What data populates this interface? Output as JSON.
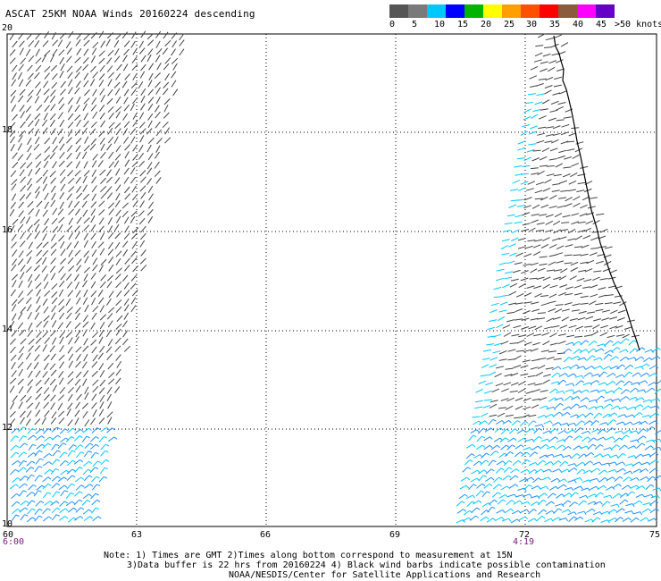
{
  "title": "ASCAT 25KM NOAA Winds 20160224 descending",
  "legend": {
    "labels": [
      "0",
      "5",
      "10",
      "15",
      "20",
      "25",
      "30",
      "35",
      "40",
      "45",
      ">50 knots"
    ],
    "colors": [
      "#555555",
      "#7a7a7a",
      "#00c8ff",
      "#0000ff",
      "#00b400",
      "#ffff00",
      "#ffa000",
      "#ff5000",
      "#ff0000",
      "#8c5a3c",
      "#ff00ff",
      "#6400c8"
    ]
  },
  "map": {
    "lat_labels": [
      "20",
      "18",
      "16",
      "14",
      "12",
      "10"
    ],
    "lon_labels": [
      "60",
      "63",
      "66",
      "69",
      "72",
      "75"
    ],
    "time_labels": [
      "6:00",
      "4:19"
    ]
  },
  "notes": {
    "line1": "Note: 1) Times are GMT 2)Times along bottom correspond to measurement at 15N",
    "line2": "3)Data buffer is 22 hrs from 20160224 4) Black wind barbs indicate possible contamination",
    "line3": "NOAA/NESDIS/Center for Satellite Applications and Research"
  }
}
